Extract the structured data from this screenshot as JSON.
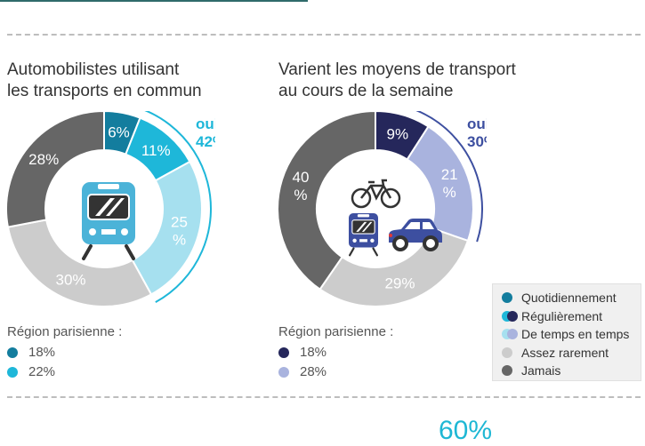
{
  "chart_data": [
    {
      "type": "pie",
      "title": "Automobilistes utilisant les transports en commun",
      "title_lines": [
        "Automobilistes utilisant",
        "les transports en commun"
      ],
      "slices": [
        {
          "label": "6%",
          "value": 6,
          "category": "Quotidiennement",
          "color": "#137d9e"
        },
        {
          "label": "11%",
          "value": 11,
          "category": "Régulièrement",
          "color": "#1eb7d9"
        },
        {
          "label": "25\n%",
          "value": 25,
          "category": "De temps en temps",
          "color": "#a6e0ef"
        },
        {
          "label": "30%",
          "value": 30,
          "category": "Assez rarement",
          "color": "#cccccc"
        },
        {
          "label": "28%",
          "value": 28,
          "category": "Jamais",
          "color": "#666666"
        }
      ],
      "oui": {
        "label": "oui :",
        "value": "42%",
        "color": "#1eb7d9"
      },
      "region": {
        "title": "Région parisienne :",
        "rows": [
          {
            "value": "18%",
            "color": "#137d9e"
          },
          {
            "value": "22%",
            "color": "#1eb7d9"
          }
        ]
      },
      "icons": [
        "train-icon"
      ]
    },
    {
      "type": "pie",
      "title": "Varient les moyens de transport au cours de la semaine",
      "title_lines": [
        "Varient les moyens de transport",
        "au cours de la semaine"
      ],
      "slices": [
        {
          "label": "9%",
          "value": 9,
          "category": "Régulièrement",
          "color": "#25275b"
        },
        {
          "label": "21\n%",
          "value": 21,
          "category": "De temps en temps",
          "color": "#a9b3de"
        },
        {
          "label": "29%",
          "value": 29,
          "category": "Assez rarement",
          "color": "#cccccc"
        },
        {
          "label": "40\n%",
          "value": 40,
          "category": "Jamais",
          "color": "#666666"
        }
      ],
      "oui": {
        "label": "oui :",
        "value": "30%",
        "color": "#3d4fa0"
      },
      "region": {
        "title": "Région parisienne :",
        "rows": [
          {
            "value": "18%",
            "color": "#25275b"
          },
          {
            "value": "28%",
            "color": "#a9b3de"
          }
        ]
      },
      "icons": [
        "bicycle-icon",
        "train-icon",
        "car-icon"
      ]
    }
  ],
  "legend": {
    "items": [
      {
        "label": "Quotidiennement",
        "colors": [
          "#137d9e"
        ]
      },
      {
        "label": "Régulièrement",
        "colors": [
          "#1eb7d9",
          "#25275b"
        ]
      },
      {
        "label": "De temps en temps",
        "colors": [
          "#a6e0ef",
          "#a9b3de"
        ]
      },
      {
        "label": "Assez rarement",
        "colors": [
          "#cccccc"
        ]
      },
      {
        "label": "Jamais",
        "colors": [
          "#666666"
        ]
      }
    ]
  },
  "bottom": {
    "value": "60%"
  }
}
